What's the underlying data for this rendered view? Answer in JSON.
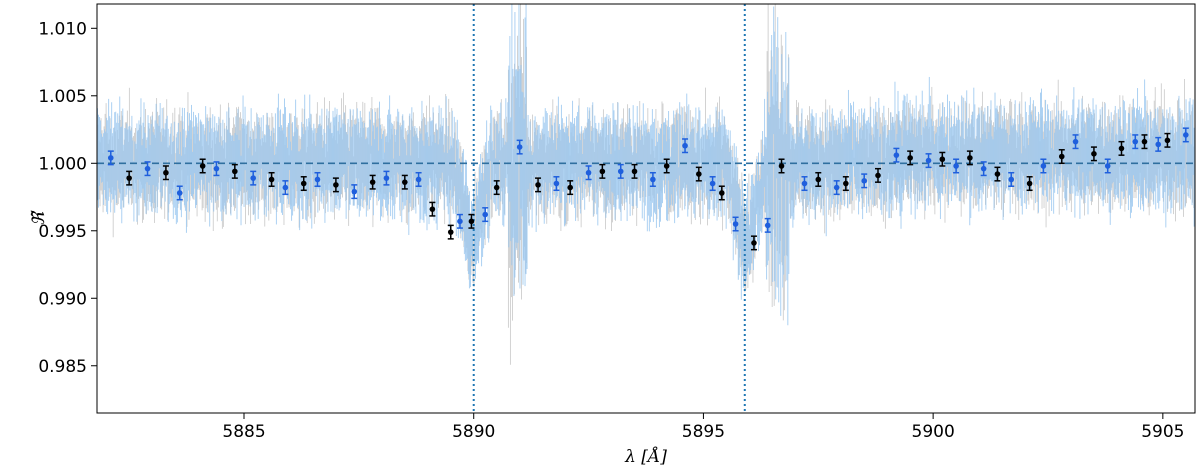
{
  "chart_data": {
    "type": "scatter",
    "title": "",
    "xlabel": "λ [Å]",
    "ylabel": "ℜ̃",
    "xlim": [
      5881.8,
      5905.7
    ],
    "ylim": [
      0.9815,
      1.0118
    ],
    "grid": false,
    "x_ticks": [
      5885,
      5890,
      5895,
      5900,
      5905
    ],
    "x_tick_labels": [
      "5885",
      "5890",
      "5895",
      "5900",
      "5905"
    ],
    "y_ticks": [
      0.985,
      0.99,
      0.995,
      1.0,
      1.005,
      1.01
    ],
    "y_tick_labels": [
      "0.985",
      "0.990",
      "0.995",
      "1.000",
      "1.005",
      "1.010"
    ],
    "reference_line": {
      "y": 1.0,
      "style": "dashed",
      "color": "#2f6f9f"
    },
    "vertical_lines": [
      {
        "x": 5890.0,
        "style": "dotted",
        "color": "#1f77b4"
      },
      {
        "x": 5895.9,
        "style": "dotted",
        "color": "#1f77b4"
      }
    ],
    "colors": {
      "background_light_blue": "#9ec9f0",
      "background_grey": "#b0b0b0",
      "binned_blue": "#1f5fdd",
      "binned_black": "#000000"
    },
    "series": [
      {
        "role": "binned-black",
        "color": "#000000",
        "errors": 0.0005,
        "x": [
          5882.5,
          5883.3,
          5884.1,
          5884.8,
          5885.6,
          5886.3,
          5887.0,
          5887.8,
          5888.5,
          5889.1,
          5889.5,
          5889.95,
          5890.5,
          5891.4,
          5892.1,
          5892.8,
          5893.5,
          5894.2,
          5894.9,
          5895.4,
          5896.1,
          5896.7,
          5897.5,
          5898.1,
          5898.8,
          5899.5,
          5900.2,
          5900.8,
          5901.4,
          5902.1,
          5902.8,
          5903.5,
          5904.1,
          5904.6,
          5905.1
        ],
        "y": [
          0.9989,
          0.9993,
          0.9998,
          0.9994,
          0.9988,
          0.9985,
          0.9984,
          0.9986,
          0.9986,
          0.9966,
          0.9949,
          0.9957,
          0.9982,
          0.9984,
          0.9982,
          0.9994,
          0.9994,
          0.9998,
          0.9992,
          0.9978,
          0.9941,
          0.9998,
          0.9988,
          0.9985,
          0.9991,
          1.0004,
          1.0003,
          1.0004,
          0.9992,
          0.9985,
          1.0005,
          1.0007,
          1.0011,
          1.0016,
          1.0017
        ]
      },
      {
        "role": "binned-blue",
        "color": "#1f5fdd",
        "errors": 0.0005,
        "x": [
          5882.1,
          5882.9,
          5883.6,
          5884.4,
          5885.2,
          5885.9,
          5886.6,
          5887.4,
          5888.1,
          5888.8,
          5889.7,
          5890.25,
          5891.0,
          5891.8,
          5892.5,
          5893.2,
          5893.9,
          5894.6,
          5895.2,
          5895.7,
          5896.4,
          5897.2,
          5897.9,
          5898.5,
          5899.2,
          5899.9,
          5900.5,
          5901.1,
          5901.7,
          5902.4,
          5903.1,
          5903.8,
          5904.4,
          5904.9,
          5905.5
        ],
        "y": [
          1.0004,
          0.9996,
          0.9978,
          0.9996,
          0.9989,
          0.9982,
          0.9988,
          0.9979,
          0.9989,
          0.9988,
          0.9957,
          0.9962,
          1.0012,
          0.9985,
          0.9993,
          0.9994,
          0.9988,
          1.0013,
          0.9985,
          0.9955,
          0.9954,
          0.9985,
          0.9982,
          0.9987,
          1.0006,
          1.0002,
          0.9998,
          0.9996,
          0.9988,
          0.9998,
          1.0016,
          0.9998,
          1.0016,
          1.0014,
          1.0021
        ]
      }
    ]
  }
}
